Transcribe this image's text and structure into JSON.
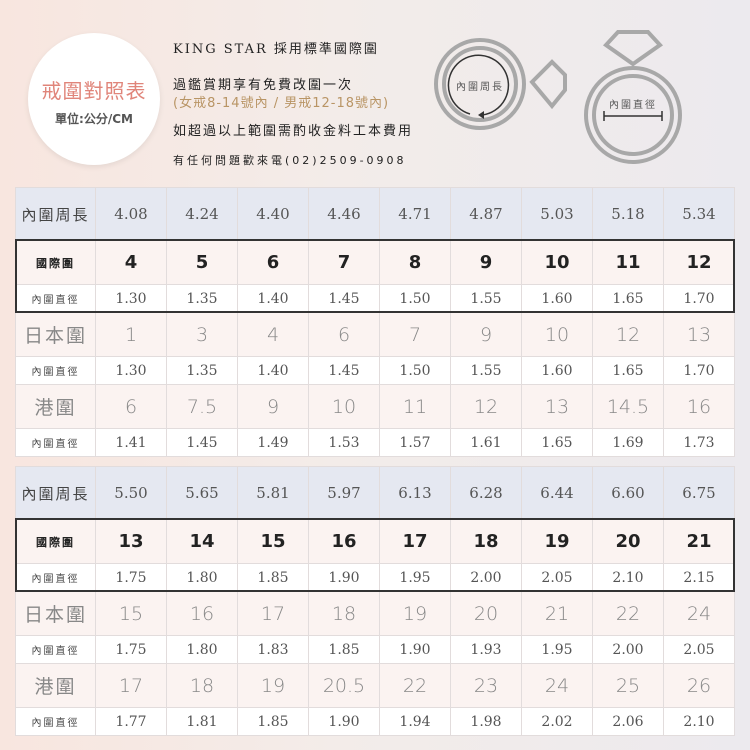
{
  "badge": {
    "title": "戒圍對照表",
    "unit": "單位:公分/CM"
  },
  "info": {
    "line1": "KING STAR 採用標準國際圍",
    "line2": "過鑑賞期享有免費改圍一次",
    "line3": "(女戒8-14號內 / 男戒12-18號內)",
    "line4": "如超過以上範圍需酌收金料工本費用",
    "line5": "有任何問題歡來電(02)2509-0908"
  },
  "icons": {
    "circumference_label": "內圍周長",
    "diameter_label": "內圍直徑"
  },
  "colors": {
    "accent": "#e0857a",
    "note": "#b99565",
    "header_row": "#e5e8f1"
  },
  "labels": {
    "circumference": "內圍周長",
    "international": "國際圍",
    "diameter": "內圍直徑",
    "japan": "日本圍",
    "hongkong": "港圍"
  },
  "tables": [
    {
      "circumference": [
        "4.08",
        "4.24",
        "4.40",
        "4.46",
        "4.71",
        "4.87",
        "5.03",
        "5.18",
        "5.34"
      ],
      "international": [
        "4",
        "5",
        "6",
        "7",
        "8",
        "9",
        "10",
        "11",
        "12"
      ],
      "intl_diameter": [
        "1.30",
        "1.35",
        "1.40",
        "1.45",
        "1.50",
        "1.55",
        "1.60",
        "1.65",
        "1.70"
      ],
      "japan": [
        "1",
        "3",
        "4",
        "6",
        "7",
        "9",
        "10",
        "12",
        "13"
      ],
      "japan_diameter": [
        "1.30",
        "1.35",
        "1.40",
        "1.45",
        "1.50",
        "1.55",
        "1.60",
        "1.65",
        "1.70"
      ],
      "hongkong": [
        "6",
        "7.5",
        "9",
        "10",
        "11",
        "12",
        "13",
        "14.5",
        "16"
      ],
      "hk_diameter": [
        "1.41",
        "1.45",
        "1.49",
        "1.53",
        "1.57",
        "1.61",
        "1.65",
        "1.69",
        "1.73"
      ]
    },
    {
      "circumference": [
        "5.50",
        "5.65",
        "5.81",
        "5.97",
        "6.13",
        "6.28",
        "6.44",
        "6.60",
        "6.75"
      ],
      "international": [
        "13",
        "14",
        "15",
        "16",
        "17",
        "18",
        "19",
        "20",
        "21"
      ],
      "intl_diameter": [
        "1.75",
        "1.80",
        "1.85",
        "1.90",
        "1.95",
        "2.00",
        "2.05",
        "2.10",
        "2.15"
      ],
      "japan": [
        "15",
        "16",
        "17",
        "18",
        "19",
        "20",
        "21",
        "22",
        "24"
      ],
      "japan_diameter": [
        "1.75",
        "1.80",
        "1.83",
        "1.85",
        "1.90",
        "1.93",
        "1.95",
        "2.00",
        "2.05"
      ],
      "hongkong": [
        "17",
        "18",
        "19",
        "20.5",
        "22",
        "23",
        "24",
        "25",
        "26"
      ],
      "hk_diameter": [
        "1.77",
        "1.81",
        "1.85",
        "1.90",
        "1.94",
        "1.98",
        "2.02",
        "2.06",
        "2.10"
      ]
    }
  ]
}
